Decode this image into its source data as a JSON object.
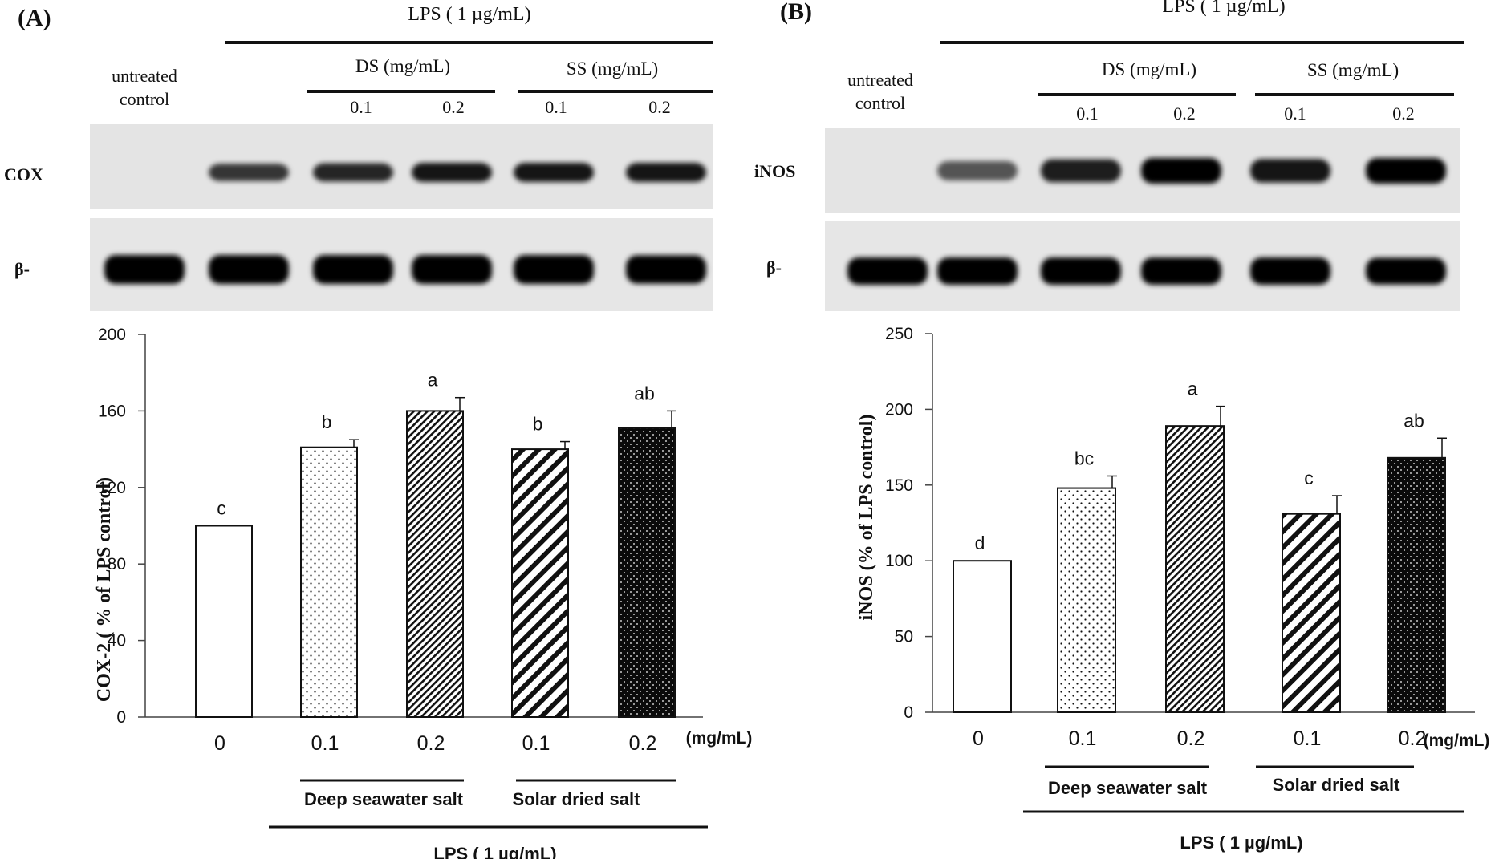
{
  "panels": [
    {
      "id": "A",
      "label": "(A)",
      "blot": {
        "lps_label": "LPS ( 1 µg/mL)",
        "untreated_label_1": "untreated",
        "untreated_label_2": "control",
        "group1_label": "DS  (mg/mL)",
        "group2_label": "SS  (mg/mL)",
        "dose_labels": [
          "0.1",
          "0.2",
          "0.1",
          "0.2"
        ],
        "row1_label": "COX",
        "row2_label": "β-",
        "row1_band_intensity": [
          0.0,
          0.6,
          0.7,
          0.8,
          0.8,
          0.8
        ],
        "row2_band_intensity": [
          1.0,
          1.0,
          1.0,
          1.0,
          1.0,
          0.95
        ]
      },
      "group_labels": [
        "Deep seawater salt",
        "Solar dried salt"
      ],
      "lps_bottom_label": "LPS ( 1 µg/mL)",
      "unit_label": "(mg/mL)"
    },
    {
      "id": "B",
      "label": "(B)",
      "blot": {
        "lps_label": "LPS ( 1 µg/mL)",
        "untreated_label_1": "untreated",
        "untreated_label_2": "control",
        "group1_label": "DS  (mg/mL)",
        "group2_label": "SS  (mg/mL)",
        "dose_labels": [
          "0.1",
          "0.2",
          "0.1",
          "0.2"
        ],
        "row1_label": "iNOS",
        "row2_label": "β-",
        "row1_band_intensity": [
          0.0,
          0.4,
          0.75,
          1.0,
          0.8,
          1.0
        ],
        "row2_band_intensity": [
          1.0,
          1.0,
          1.0,
          1.0,
          1.0,
          0.95
        ]
      },
      "group_labels": [
        "Deep seawater salt",
        "Solar dried salt"
      ],
      "lps_bottom_label": "LPS ( 1 µg/mL)",
      "unit_label": "(mg/mL)"
    }
  ],
  "chart_data": [
    {
      "type": "bar",
      "panel": "A",
      "ylabel": "COX-2 ( % of LPS control)",
      "categories": [
        "0",
        "0.1",
        "0.2",
        "0.1",
        "0.2"
      ],
      "values": [
        100,
        141,
        160,
        140,
        151
      ],
      "errors": [
        0,
        4,
        7,
        4,
        9
      ],
      "letters": [
        "c",
        "b",
        "a",
        "b",
        "ab"
      ],
      "patterns": [
        "white",
        "dots-sparse",
        "hatch-fine",
        "hatch-bold",
        "dots-dense"
      ],
      "ylim": [
        0,
        200
      ],
      "yticks": [
        0,
        40,
        80,
        120,
        160,
        200
      ]
    },
    {
      "type": "bar",
      "panel": "B",
      "ylabel": "iNOS (% of LPS control)",
      "categories": [
        "0",
        "0.1",
        "0.2",
        "0.1",
        "0.2"
      ],
      "values": [
        100,
        148,
        189,
        131,
        168
      ],
      "errors": [
        0,
        8,
        13,
        12,
        13
      ],
      "letters": [
        "d",
        "bc",
        "a",
        "c",
        "ab"
      ],
      "patterns": [
        "white",
        "dots-sparse",
        "hatch-fine",
        "hatch-bold",
        "dots-dense"
      ],
      "ylim": [
        0,
        250
      ],
      "yticks": [
        0,
        50,
        100,
        150,
        200,
        250
      ]
    }
  ]
}
